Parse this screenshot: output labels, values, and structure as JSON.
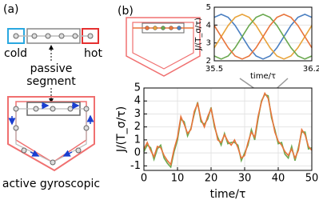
{
  "diagram": {
    "panel_a": {
      "label": "(a)",
      "cold": "cold",
      "hot": "hot",
      "passive_segment": [
        "passive",
        "segment"
      ],
      "active": "active gyroscopic"
    },
    "panel_b": {
      "label": "(b)"
    }
  },
  "chart_data": [
    {
      "type": "line",
      "xlabel": "time/τ",
      "ylabel": "J/(T_σ/τ)",
      "grid": true,
      "xlim": [
        0,
        50
      ],
      "xticks": [
        0,
        10,
        20,
        30,
        40,
        50
      ],
      "ylim": [
        -1.35,
        5
      ],
      "yticks": [
        -1,
        0,
        1,
        2,
        3,
        4,
        5
      ],
      "x": [
        0,
        1,
        2,
        3,
        4,
        5,
        6,
        7,
        8,
        9,
        10,
        11,
        12,
        13,
        14,
        15,
        16,
        17,
        18,
        19,
        20,
        21,
        22,
        23,
        24,
        25,
        26,
        27,
        28,
        29,
        30,
        31,
        32,
        33,
        34,
        35,
        36,
        37,
        38,
        39,
        40,
        41,
        42,
        43,
        44,
        45,
        46,
        47,
        48,
        49,
        50
      ],
      "series": [
        {
          "color": "#6aa84f",
          "values": [
            0.1,
            0.6,
            0.4,
            -0.5,
            0.3,
            0.6,
            -0.4,
            -0.8,
            -1.1,
            0.1,
            1.0,
            2.6,
            2.4,
            1.3,
            1.9,
            3.0,
            3.9,
            2.4,
            2.2,
            2.6,
            3.5,
            2.0,
            1.2,
            0.6,
            1.5,
            0.7,
            0.8,
            0.8,
            0.6,
            -0.6,
            0.0,
            0.6,
            1.8,
            1.0,
            2.6,
            4.0,
            4.5,
            4.4,
            2.7,
            1.8,
            0.7,
            0.8,
            -0.1,
            -0.4,
            0.5,
            -0.6,
            0.4,
            1.6,
            1.6,
            0.3,
            0.4
          ]
        },
        {
          "color": "#e8743b",
          "values": [
            0.3,
            0.8,
            0.2,
            -0.3,
            0.5,
            0.4,
            -0.2,
            -0.6,
            -0.9,
            0.3,
            1.2,
            2.8,
            2.2,
            1.5,
            1.8,
            3.2,
            3.8,
            2.6,
            2.0,
            2.8,
            3.4,
            2.2,
            1.0,
            0.8,
            1.4,
            0.9,
            0.6,
            1.0,
            0.4,
            -0.4,
            -0.2,
            0.8,
            1.6,
            1.2,
            2.8,
            3.9,
            4.6,
            4.2,
            2.9,
            1.6,
            0.9,
            0.6,
            0.1,
            -0.2,
            0.3,
            -0.4,
            0.2,
            1.8,
            1.4,
            0.5,
            0.2
          ]
        }
      ]
    },
    {
      "type": "line",
      "xlabel": "time/τ",
      "ylabel": "J/(T_σ/τ)",
      "grid": true,
      "xlim": [
        35.5,
        36.2
      ],
      "xticks": [
        35.5,
        36.2
      ],
      "ylim": [
        2,
        5
      ],
      "yticks": [
        2,
        3,
        4,
        5
      ],
      "x": [
        35.5,
        35.55,
        35.6,
        35.65,
        35.7,
        35.75,
        35.8,
        35.85,
        35.9,
        35.95,
        36.0,
        36.05,
        36.1,
        36.15,
        36.2
      ],
      "series": [
        {
          "color": "#4a7fc1",
          "values": [
            4.43,
            4.6,
            4.43,
            3.98,
            3.35,
            2.73,
            2.27,
            2.1,
            2.27,
            2.73,
            3.35,
            3.98,
            4.43,
            4.6,
            4.43
          ]
        },
        {
          "color": "#e8a33b",
          "values": [
            2.73,
            3.35,
            3.98,
            4.43,
            4.6,
            4.43,
            3.98,
            3.35,
            2.73,
            2.27,
            2.1,
            2.27,
            2.73,
            3.35,
            3.98
          ]
        },
        {
          "color": "#6aa84f",
          "values": [
            2.27,
            2.1,
            2.27,
            2.73,
            3.35,
            3.98,
            4.43,
            4.6,
            4.43,
            3.98,
            3.35,
            2.73,
            2.27,
            2.1,
            2.27
          ]
        },
        {
          "color": "#e8743b",
          "values": [
            3.98,
            3.35,
            2.73,
            2.27,
            2.1,
            2.27,
            2.73,
            3.35,
            3.98,
            4.43,
            4.6,
            4.43,
            3.98,
            3.35,
            2.73
          ]
        }
      ]
    }
  ]
}
